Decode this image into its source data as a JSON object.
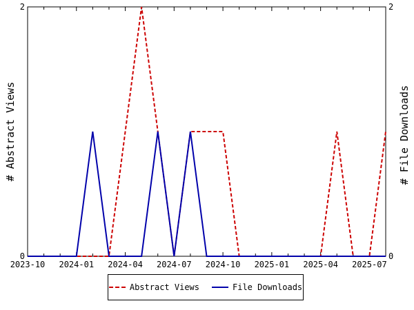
{
  "chart_data": {
    "type": "line",
    "x": [
      "2023-10",
      "2023-11",
      "2023-12",
      "2024-01",
      "2024-02",
      "2024-03",
      "2024-04",
      "2024-05",
      "2024-06",
      "2024-07",
      "2024-08",
      "2024-09",
      "2024-10",
      "2024-11",
      "2024-12",
      "2025-01",
      "2025-02",
      "2025-03",
      "2025-04",
      "2025-05",
      "2025-06",
      "2025-07",
      "2025-08"
    ],
    "x_tick_labels": [
      "2023-10",
      "2024-01",
      "2024-04",
      "2024-07",
      "2024-10",
      "2025-01",
      "2025-04",
      "2025-07"
    ],
    "series": [
      {
        "name": "Abstract Views",
        "axis": "left",
        "color": "#cc0000",
        "style": "dashed",
        "values": [
          0,
          0,
          0,
          0,
          0,
          0,
          1,
          2,
          1,
          0,
          1,
          1,
          1,
          0,
          0,
          0,
          0,
          0,
          0,
          1,
          0,
          0,
          1
        ]
      },
      {
        "name": "File Downloads",
        "axis": "right",
        "color": "#0000aa",
        "style": "solid",
        "values": [
          0,
          0,
          0,
          0,
          1,
          0,
          0,
          0,
          1,
          0,
          1,
          0,
          0,
          0,
          0,
          0,
          0,
          0,
          0,
          0,
          0,
          0,
          0
        ]
      }
    ],
    "ylabel_left": "# Abstract Views",
    "ylabel_right": "# File Downloads",
    "ylim_left": [
      0,
      2
    ],
    "ylim_right": [
      0,
      2
    ],
    "y_tick_labels_left": [
      "0",
      "2"
    ],
    "y_tick_labels_right": [
      "0",
      "2"
    ],
    "grid": false,
    "legend_position": "bottom"
  }
}
